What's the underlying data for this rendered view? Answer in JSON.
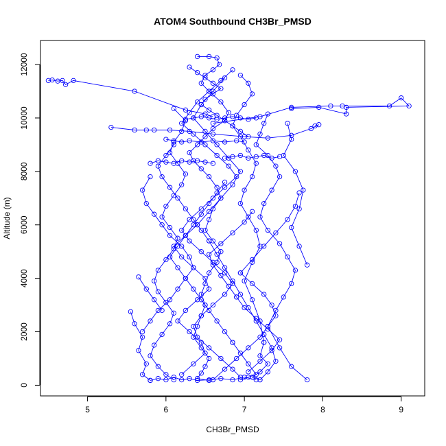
{
  "chart_data": {
    "type": "line",
    "title": "ATOM4 Southbound CH3Br_PMSD",
    "xlabel": "CH3Br_PMSD",
    "ylabel": "Altitude (m)",
    "xlim": [
      4.4,
      9.3
    ],
    "ylim": [
      -400,
      12900
    ],
    "x_ticks": [
      5,
      6,
      7,
      8,
      9
    ],
    "y_ticks": [
      0,
      2000,
      4000,
      6000,
      8000,
      10000,
      12000
    ],
    "x_tick_labels": [
      "5",
      "6",
      "7",
      "8",
      "9"
    ],
    "y_tick_labels": [
      "0",
      "2000",
      "4000",
      "6000",
      "8000",
      "10000",
      "12000"
    ],
    "grid": false,
    "legend": "none",
    "marker": "open-circle",
    "color": "#0000ff",
    "series": [
      {
        "x": [
          4.5,
          4.55,
          4.62,
          4.68,
          4.72,
          4.82,
          5.6,
          6.25,
          6.5,
          6.6
        ],
        "y": [
          11400,
          11420,
          11380,
          11400,
          11250,
          11400,
          11000,
          10300,
          10150,
          10050
        ]
      },
      {
        "x": [
          6.6,
          7.2,
          7.6,
          8.1,
          8.25,
          8.85,
          9.0,
          9.1,
          8.3,
          8.3,
          7.95,
          7.6
        ],
        "y": [
          9800,
          10050,
          10400,
          10450,
          10450,
          10450,
          10750,
          10450,
          10400,
          10150,
          10400,
          10350
        ]
      },
      {
        "x": [
          5.3,
          5.6,
          5.75,
          5.85,
          6.05,
          6.3,
          6.6,
          7.0,
          7.3,
          7.6,
          7.85,
          7.95,
          7.9
        ],
        "y": [
          9650,
          9550,
          9550,
          9550,
          9550,
          9500,
          9400,
          9300,
          9250,
          9350,
          9600,
          9750,
          9700
        ]
      },
      {
        "x": [
          6.4,
          6.55,
          6.65,
          6.68,
          6.6,
          6.5,
          6.45,
          6.55,
          6.7,
          6.8,
          6.75,
          6.6,
          6.5,
          6.4,
          6.3,
          6.35,
          6.45,
          6.55,
          6.65,
          6.7,
          6.6,
          6.55,
          6.5,
          6.6,
          6.7,
          6.65,
          6.55,
          6.5,
          6.45,
          6.5
        ],
        "y": [
          12300,
          12300,
          12250,
          12000,
          11800,
          11600,
          11300,
          11000,
          10600,
          10200,
          9900,
          9600,
          9300,
          9000,
          8700,
          8400,
          8100,
          7800,
          7400,
          7000,
          6600,
          6200,
          5800,
          5400,
          5000,
          4600,
          4200,
          3800,
          3400,
          3000
        ]
      },
      {
        "x": [
          6.5,
          6.45,
          6.4,
          6.35,
          6.45,
          6.55,
          6.5,
          6.45,
          6.4,
          6.55,
          6.6
        ],
        "y": [
          3000,
          2600,
          2200,
          1800,
          1400,
          1000,
          700,
          450,
          250,
          180,
          200
        ]
      },
      {
        "x": [
          6.95,
          7.05,
          7.1,
          7.0,
          6.9,
          6.85,
          6.95,
          7.05,
          7.15,
          7.1,
          7.0,
          6.95,
          7.05,
          7.15,
          7.2,
          7.1,
          7.0,
          7.1,
          7.2,
          7.25
        ],
        "y": [
          11600,
          11300,
          10900,
          10500,
          10100,
          9700,
          9300,
          8800,
          8300,
          7800,
          7300,
          6800,
          6300,
          5800,
          5200,
          4600,
          3900,
          3200,
          2400,
          1600
        ]
      },
      {
        "x": [
          7.25,
          7.2,
          7.3,
          7.2,
          7.1,
          7.2
        ],
        "y": [
          1600,
          1100,
          800,
          500,
          300,
          200
        ]
      },
      {
        "x": [
          6.1,
          6.25,
          6.2,
          6.1,
          6.05,
          6.15,
          6.25,
          6.2,
          6.1,
          6.0,
          5.95,
          6.05,
          6.15,
          6.1,
          6.0,
          5.9,
          5.85,
          5.9,
          6.0,
          6.1,
          6.05,
          5.95,
          5.85,
          5.8,
          5.9,
          6.0,
          6.1
        ],
        "y": [
          10350,
          9900,
          9500,
          9100,
          8700,
          8300,
          7900,
          7500,
          7100,
          6700,
          6300,
          5900,
          5500,
          5100,
          4700,
          4300,
          3900,
          3500,
          3100,
          2700,
          2300,
          1900,
          1500,
          1100,
          700,
          400,
          200
        ]
      },
      {
        "x": [
          6.85,
          6.7,
          6.55,
          6.4,
          6.3,
          6.2,
          6.35,
          6.5,
          6.65,
          6.8,
          6.9,
          6.75,
          6.6,
          6.45,
          6.3,
          6.2,
          6.3,
          6.45,
          6.6,
          6.75,
          6.85,
          6.75,
          6.6,
          6.45,
          6.35,
          6.4,
          6.55,
          6.7,
          6.85,
          6.95
        ],
        "y": [
          11800,
          11400,
          11000,
          10600,
          10200,
          9800,
          9400,
          9000,
          8600,
          8200,
          7800,
          7400,
          7000,
          6600,
          6200,
          5800,
          5400,
          5000,
          4600,
          4200,
          3800,
          3400,
          3000,
          2600,
          2200,
          1800,
          1400,
          1000,
          600,
          300
        ]
      },
      {
        "x": [
          7.3,
          7.25,
          7.2,
          7.15,
          7.3,
          7.4,
          7.45,
          7.35,
          7.25,
          7.2,
          7.3,
          7.45,
          7.55,
          7.65,
          7.6,
          7.5,
          7.4,
          7.3
        ],
        "y": [
          10150,
          9800,
          9400,
          9000,
          8600,
          8200,
          7800,
          7300,
          6800,
          6300,
          5800,
          5300,
          4800,
          4300,
          3800,
          3300,
          2800,
          2200
        ]
      },
      {
        "x": [
          7.3,
          7.45,
          7.6,
          7.8
        ],
        "y": [
          2200,
          1400,
          700,
          200
        ]
      },
      {
        "x": [
          7.55,
          7.6,
          7.5,
          7.65,
          7.75,
          7.7,
          7.6,
          7.7,
          7.8
        ],
        "y": [
          9800,
          9200,
          8600,
          8000,
          7300,
          6600,
          5900,
          5200,
          4500
        ]
      },
      {
        "x": [
          5.7,
          5.8,
          5.9,
          6.05,
          6.15,
          6.25,
          6.35,
          6.3,
          6.2,
          6.05,
          5.95,
          5.85,
          5.75,
          5.7,
          5.8
        ],
        "y": [
          2000,
          2400,
          2800,
          3200,
          3600,
          4000,
          4400,
          4800,
          5200,
          5600,
          6000,
          6400,
          6800,
          7300,
          7800
        ]
      },
      {
        "x": [
          5.55,
          5.6,
          5.7,
          5.65,
          5.75,
          5.7,
          5.8
        ],
        "y": [
          2750,
          2300,
          1800,
          1300,
          800,
          400,
          180
        ]
      },
      {
        "x": [
          5.65,
          5.75,
          5.85,
          5.95
        ],
        "y": [
          4050,
          3600,
          3200,
          2800
        ]
      },
      {
        "x": [
          6.6,
          6.75,
          6.9,
          7.05,
          7.2,
          7.3,
          7.4,
          7.35,
          7.25,
          7.1,
          6.95
        ],
        "y": [
          200,
          600,
          1000,
          1400,
          1800,
          2200,
          2600,
          3000,
          3400,
          3800,
          4200
        ]
      },
      {
        "x": [
          6.95,
          7.1,
          7.25,
          7.4,
          7.55,
          7.65,
          7.7
        ],
        "y": [
          4200,
          4700,
          5200,
          5700,
          6200,
          6700,
          7200
        ]
      },
      {
        "x": [
          6.2,
          6.35,
          6.5,
          6.45,
          6.3,
          6.15,
          6.25,
          6.4,
          6.55,
          6.5,
          6.35,
          6.2,
          6.1,
          6.25,
          6.4
        ],
        "y": [
          400,
          800,
          1200,
          1600,
          2000,
          2400,
          2800,
          3200,
          3600,
          4000,
          4400,
          4800,
          5200,
          5600,
          6000
        ]
      },
      {
        "x": [
          6.4,
          6.55,
          6.7,
          6.85,
          6.95,
          6.8,
          6.65,
          6.5,
          6.35,
          6.45,
          6.6,
          6.75
        ],
        "y": [
          6000,
          6500,
          7000,
          7500,
          8000,
          8500,
          9000,
          9500,
          10000,
          10500,
          11000,
          11500
        ]
      },
      {
        "x": [
          7.05,
          7.2,
          7.35,
          7.45,
          7.3,
          7.15,
          7.0,
          6.9
        ],
        "y": [
          500,
          900,
          1300,
          1700,
          2100,
          2500,
          2900,
          3300
        ]
      },
      {
        "x": [
          6.9,
          6.8,
          6.7,
          6.6,
          6.55,
          6.7,
          6.85,
          7.0,
          7.1
        ],
        "y": [
          3300,
          3700,
          4100,
          4500,
          4900,
          5300,
          5700,
          6100,
          6500
        ]
      },
      {
        "x": [
          6.0,
          6.1,
          6.2,
          6.3,
          6.45,
          6.6,
          6.75,
          6.9,
          7.0
        ],
        "y": [
          9200,
          9150,
          9100,
          9150,
          9100,
          9150,
          9100,
          9150,
          9100
        ]
      },
      {
        "x": [
          6.6,
          6.5,
          6.4,
          6.3,
          6.2,
          6.1,
          6.0,
          5.9,
          5.8
        ],
        "y": [
          8300,
          8350,
          8400,
          8350,
          8400,
          8300,
          8350,
          8400,
          8300
        ]
      },
      {
        "x": [
          7.2,
          7.3,
          7.4,
          7.35,
          7.25,
          7.15,
          7.05,
          6.95,
          6.85,
          6.75,
          6.65,
          6.55
        ],
        "y": [
          200,
          500,
          900,
          1400,
          1900,
          2400,
          2900,
          3400,
          3900,
          4400,
          4900,
          5400
        ]
      },
      {
        "x": [
          6.55,
          6.45,
          6.35,
          6.25,
          6.15,
          6.05,
          5.95,
          5.9,
          6.0,
          6.1
        ],
        "y": [
          5400,
          5800,
          6200,
          6600,
          7000,
          7400,
          7800,
          8200,
          8600,
          9000
        ]
      },
      {
        "x": [
          5.8,
          5.9,
          6.0,
          6.1,
          6.2,
          6.3,
          6.4,
          6.55,
          6.7,
          6.85,
          7.0,
          7.15
        ],
        "y": [
          180,
          250,
          200,
          300,
          200,
          250,
          180,
          200,
          250,
          200,
          300,
          200
        ]
      },
      {
        "x": [
          6.3,
          6.4,
          6.5,
          6.6,
          6.7,
          6.6,
          6.5,
          6.45,
          6.55,
          6.65,
          6.75,
          6.85,
          6.95,
          7.05
        ],
        "y": [
          11900,
          11700,
          11500,
          11300,
          11100,
          10900,
          10700,
          10500,
          10300,
          10100,
          9900,
          9700,
          9500,
          9300
        ]
      },
      {
        "x": [
          6.25,
          6.35,
          6.45,
          6.55,
          6.65,
          6.75,
          6.85,
          6.95,
          7.05,
          7.15
        ],
        "y": [
          9950,
          10000,
          10050,
          10000,
          9950,
          10000,
          10050,
          10000,
          9950,
          10000
        ]
      },
      {
        "x": [
          7.45,
          7.35,
          7.25,
          7.15,
          7.05,
          6.95,
          6.85,
          6.75
        ],
        "y": [
          8550,
          8500,
          8600,
          8550,
          8500,
          8600,
          8550,
          8500
        ]
      },
      {
        "x": [
          6.75,
          6.65,
          6.55,
          6.45,
          6.35,
          6.25,
          6.15,
          6.05
        ],
        "y": [
          7600,
          7200,
          6800,
          6400,
          6000,
          5600,
          5200,
          4800
        ]
      },
      {
        "x": [
          6.05,
          6.15,
          6.25,
          6.35,
          6.45,
          6.55,
          6.65,
          6.75,
          6.85
        ],
        "y": [
          4800,
          4400,
          4000,
          3600,
          3200,
          2800,
          2400,
          2000,
          1600
        ]
      },
      {
        "x": [
          6.85,
          6.95,
          7.05,
          7.15,
          7.05,
          6.95
        ],
        "y": [
          1600,
          1200,
          800,
          400,
          300,
          200
        ]
      }
    ]
  }
}
